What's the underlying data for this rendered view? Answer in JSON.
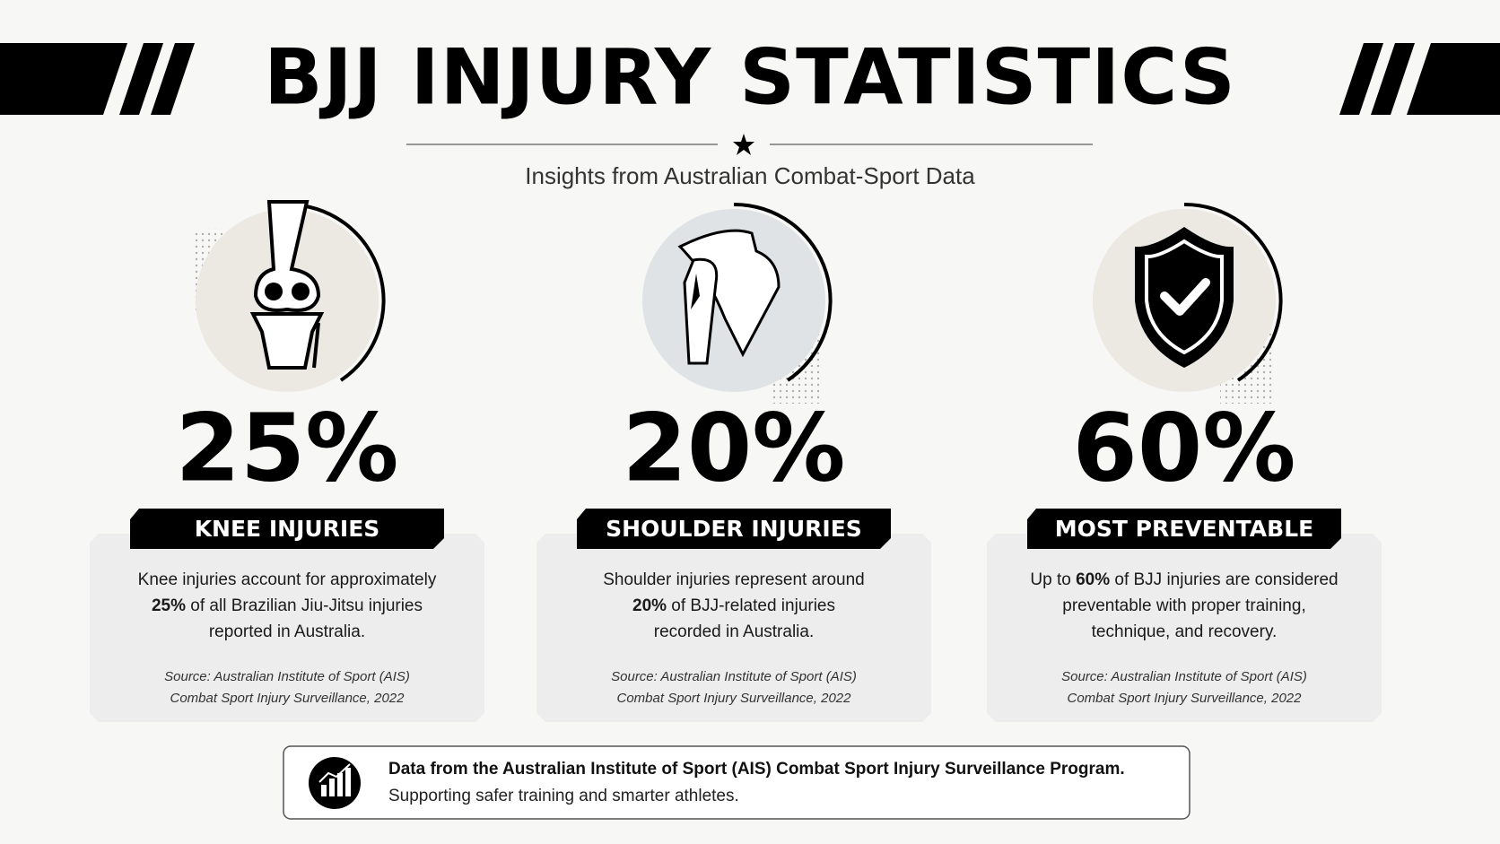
{
  "header": {
    "title": "BJJ INJURY STATISTICS",
    "subtitle": "Insights from Australian Combat-Sport Data"
  },
  "cards": [
    {
      "stat": "25%",
      "label": "KNEE INJURIES",
      "lines": [
        [
          {
            "text": "Knee injuries account for approximately"
          }
        ],
        [
          {
            "strong": "25%"
          },
          {
            "text": " of all Brazilian Jiu-Jitsu injuries"
          }
        ],
        [
          {
            "text": "reported in Australia."
          }
        ]
      ],
      "source": [
        "Source: Australian Institute of Sport (AIS)",
        "Combat Sport Injury Surveillance, 2022"
      ]
    },
    {
      "stat": "20%",
      "label": "SHOULDER INJURIES",
      "lines": [
        [
          {
            "text": "Shoulder injuries represent around"
          }
        ],
        [
          {
            "strong": "20%"
          },
          {
            "text": " of BJJ-related injuries"
          }
        ],
        [
          {
            "text": "recorded in Australia."
          }
        ]
      ],
      "source": [
        "Source: Australian Institute of Sport (AIS)",
        "Combat Sport Injury Surveillance, 2022"
      ]
    },
    {
      "stat": "60%",
      "label": "MOST PREVENTABLE",
      "lines": [
        [
          {
            "text": "Up to "
          },
          {
            "strong": "60%"
          },
          {
            "text": " of BJJ injuries are considered"
          }
        ],
        [
          {
            "text": "preventable with proper training,"
          }
        ],
        [
          {
            "text": "technique, and recovery."
          }
        ]
      ],
      "source": [
        "Source: Australian Institute of Sport (AIS)",
        "Combat Sport Injury Surveillance, 2022"
      ]
    }
  ],
  "footer": {
    "headline": "Data from the Australian Institute of Sport (AIS) Combat Sport Injury Surveillance Program.",
    "text": "Supporting safer training and smarter athletes."
  }
}
